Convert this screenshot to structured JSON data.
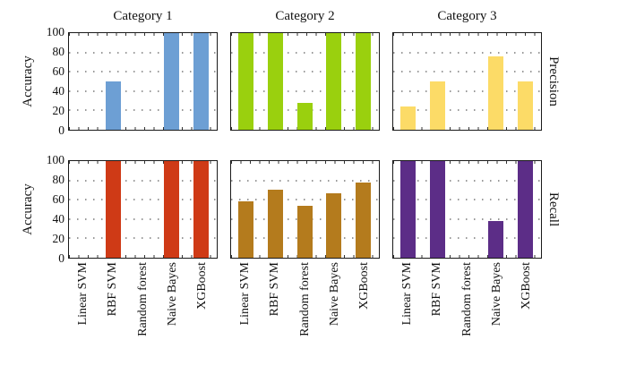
{
  "chart_data": {
    "type": "bar",
    "categories": [
      "Linear SVM",
      "RBF SVM",
      "Random forest",
      "Naive Bayes",
      "XGBoost"
    ],
    "columns": [
      "Category 1",
      "Category 2",
      "Category 3"
    ],
    "rows": [
      "Precision",
      "Recall"
    ],
    "ylabel": "Accuracy",
    "ylim": [
      0,
      100
    ],
    "yticks": [
      0,
      20,
      40,
      60,
      80,
      100
    ],
    "grid": {
      "style": "dotted",
      "horizontal_at": [
        20,
        40,
        60,
        80
      ]
    },
    "legend": "none",
    "panels": [
      {
        "row": "Precision",
        "column": "Category 1",
        "color": "#6d9fd4",
        "values": [
          0,
          50,
          0,
          100,
          100
        ]
      },
      {
        "row": "Precision",
        "column": "Category 2",
        "color": "#9ad00e",
        "values": [
          100,
          100,
          28,
          100,
          100
        ]
      },
      {
        "row": "Precision",
        "column": "Category 3",
        "color": "#fcdb67",
        "values": [
          24,
          50,
          0,
          76,
          50
        ]
      },
      {
        "row": "Recall",
        "column": "Category 1",
        "color": "#cf3a16",
        "values": [
          0,
          100,
          0,
          100,
          100
        ]
      },
      {
        "row": "Recall",
        "column": "Category 2",
        "color": "#b47b1d",
        "values": [
          58,
          70,
          54,
          67,
          78
        ]
      },
      {
        "row": "Recall",
        "column": "Category 3",
        "color": "#5c2d87",
        "values": [
          100,
          100,
          0,
          38,
          100
        ]
      }
    ]
  }
}
